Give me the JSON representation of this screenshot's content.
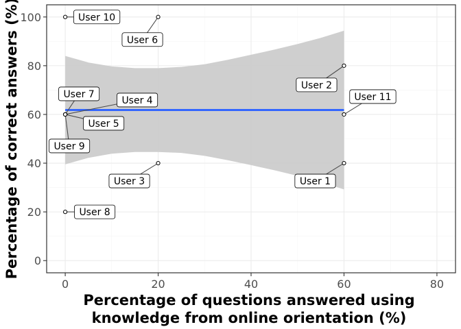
{
  "chart_data": {
    "type": "scatter",
    "title": "",
    "xlabel_lines": [
      "Percentage of questions answered using",
      "knowledge from online orientation (%)"
    ],
    "ylabel": "Percentage of correct answers (%)",
    "xlim": [
      -4,
      84
    ],
    "ylim": [
      -5,
      105
    ],
    "xticks": [
      0,
      20,
      40,
      60,
      80
    ],
    "yticks": [
      0,
      20,
      40,
      60,
      80,
      100
    ],
    "grid": true,
    "legend": "none",
    "points": [
      {
        "label": "User 1",
        "x": 60,
        "y": 40
      },
      {
        "label": "User 2",
        "x": 60,
        "y": 80
      },
      {
        "label": "User 3",
        "x": 20,
        "y": 40
      },
      {
        "label": "User 4",
        "x": 0,
        "y": 60
      },
      {
        "label": "User 5",
        "x": 0,
        "y": 60
      },
      {
        "label": "User 6",
        "x": 20,
        "y": 100
      },
      {
        "label": "User 7",
        "x": 0,
        "y": 60
      },
      {
        "label": "User 8",
        "x": 0,
        "y": 20
      },
      {
        "label": "User 9",
        "x": 0,
        "y": 60
      },
      {
        "label": "User 10",
        "x": 0,
        "y": 100
      },
      {
        "label": "User 11",
        "x": 60,
        "y": 60
      }
    ],
    "fit_line": {
      "x": [
        0,
        60
      ],
      "y": [
        61.8,
        61.8
      ],
      "color": "#3366ff"
    },
    "confidence_band": {
      "x": [
        0,
        5,
        10,
        15,
        20,
        25,
        30,
        35,
        40,
        45,
        50,
        55,
        60
      ],
      "lower": [
        39.5,
        42.2,
        43.9,
        44.6,
        44.6,
        44.2,
        43.0,
        41.2,
        39.2,
        37.1,
        34.8,
        32.3,
        29.2
      ],
      "upper": [
        84.0,
        81.3,
        79.7,
        79.0,
        79.0,
        79.5,
        80.6,
        82.4,
        84.5,
        86.6,
        88.9,
        91.4,
        94.4
      ],
      "color": "#cccccc"
    },
    "colors": {
      "panel_border": "#333333",
      "grid_major": "#ebebeb",
      "grid_minor": "#f5f5f5",
      "point_stroke": "#000000"
    }
  }
}
